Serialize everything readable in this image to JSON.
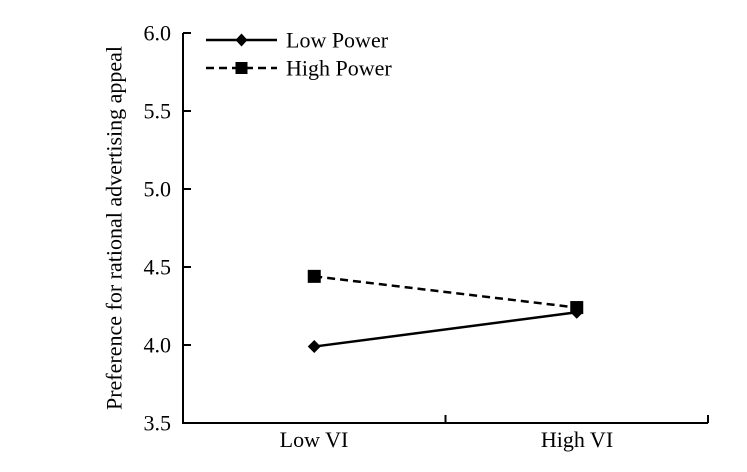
{
  "chart_data": {
    "type": "line",
    "title": "",
    "xlabel": "",
    "ylabel": "Preference for rational advertising appeal",
    "categories": [
      "Low VI",
      "High VI"
    ],
    "series": [
      {
        "name": "Low Power",
        "values": [
          3.99,
          4.21
        ],
        "line_style": "solid",
        "marker": "diamond",
        "color": "#000000"
      },
      {
        "name": "High Power",
        "values": [
          4.44,
          4.24
        ],
        "line_style": "dashed",
        "marker": "square",
        "color": "#000000"
      }
    ],
    "ylim": [
      3.5,
      6.0
    ],
    "ytick_step": 0.5,
    "ytick_labels": [
      "3.5",
      "4.0",
      "4.5",
      "5.0",
      "5.5",
      "6.0"
    ],
    "grid": false,
    "legend_position": "top-left",
    "axis_color": "#000000",
    "background": "#ffffff"
  }
}
